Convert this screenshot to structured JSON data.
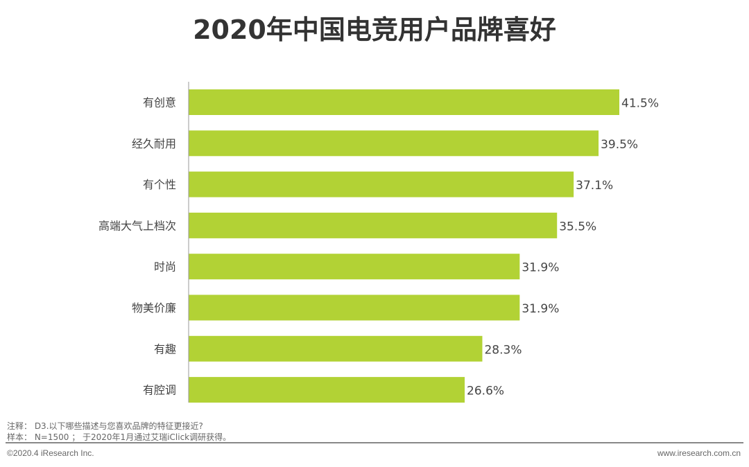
{
  "chart_data": {
    "type": "bar",
    "orientation": "horizontal",
    "title": "2020年中国电竞用户品牌喜好",
    "categories": [
      "有创意",
      "经久耐用",
      "有个性",
      "高端大气上档次",
      "时尚",
      "物美价廉",
      "有趣",
      "有腔调"
    ],
    "values": [
      41.5,
      39.5,
      37.1,
      35.5,
      31.9,
      31.9,
      28.3,
      26.6
    ],
    "value_labels": [
      "41.5%",
      "39.5%",
      "37.1%",
      "35.5%",
      "31.9%",
      "31.9%",
      "28.3%",
      "26.6%"
    ],
    "unit": "%",
    "xlim": [
      0,
      41.5
    ],
    "bar_color": "#b2d235",
    "grid": false,
    "xlabel": "",
    "ylabel": ""
  },
  "notes": {
    "note": "注释： D3.以下哪些描述与您喜欢品牌的特征更接近?",
    "sample": "样本： N=1500 ； 于2020年1月通过艾瑞iClick调研获得。"
  },
  "footer": {
    "copyright": "©2020.4 iResearch Inc.",
    "website": "www.iresearch.com.cn"
  }
}
